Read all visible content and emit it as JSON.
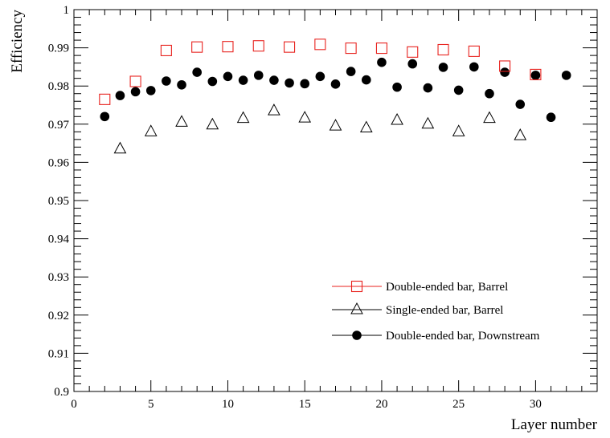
{
  "chart_data": {
    "type": "scatter",
    "title": "",
    "xlabel": "Layer number",
    "ylabel": "Efficiency",
    "xlim": [
      0,
      34
    ],
    "ylim": [
      0.9,
      1
    ],
    "x_ticks": [
      0,
      5,
      10,
      15,
      20,
      25,
      30
    ],
    "x_tick_labels": [
      "0",
      "5",
      "10",
      "15",
      "20",
      "25",
      "30"
    ],
    "y_ticks": [
      0.9,
      0.91,
      0.92,
      0.93,
      0.94,
      0.95,
      0.96,
      0.97,
      0.98,
      0.99,
      1
    ],
    "y_tick_labels": [
      "0.9",
      "0.91",
      "0.92",
      "0.93",
      "0.94",
      "0.95",
      "0.96",
      "0.97",
      "0.98",
      "0.99",
      "1"
    ],
    "grid": false,
    "legend_position": "bottom-right",
    "series": [
      {
        "name": "Double-ended bar, Barrel",
        "marker": "open-square",
        "color": "#e8221e",
        "x": [
          2,
          4,
          6,
          8,
          10,
          12,
          14,
          16,
          18,
          20,
          22,
          24,
          26,
          28,
          30
        ],
        "y": [
          0.9765,
          0.9812,
          0.9893,
          0.9902,
          0.9903,
          0.9905,
          0.9902,
          0.9909,
          0.9899,
          0.9899,
          0.9889,
          0.9895,
          0.9891,
          0.9852,
          0.983
        ]
      },
      {
        "name": "Single-ended bar, Barrel",
        "marker": "open-triangle",
        "color": "#000000",
        "x": [
          3,
          5,
          7,
          9,
          11,
          13,
          15,
          17,
          19,
          21,
          23,
          25,
          27,
          29
        ],
        "y": [
          0.9635,
          0.968,
          0.9705,
          0.9698,
          0.9715,
          0.9735,
          0.9716,
          0.9695,
          0.969,
          0.971,
          0.97,
          0.968,
          0.9715,
          0.967
        ]
      },
      {
        "name": "Double-ended bar, Downstream",
        "marker": "filled-circle",
        "color": "#000000",
        "x": [
          2,
          3,
          4,
          5,
          6,
          7,
          8,
          9,
          10,
          11,
          12,
          13,
          14,
          15,
          16,
          17,
          18,
          19,
          20,
          21,
          22,
          23,
          24,
          25,
          26,
          27,
          28,
          29,
          30,
          31,
          32
        ],
        "y": [
          0.972,
          0.9775,
          0.9785,
          0.9788,
          0.9813,
          0.9803,
          0.9836,
          0.9812,
          0.9825,
          0.9815,
          0.9828,
          0.9815,
          0.9808,
          0.9806,
          0.9825,
          0.9805,
          0.9838,
          0.9816,
          0.9862,
          0.9797,
          0.9858,
          0.9795,
          0.9849,
          0.9789,
          0.985,
          0.978,
          0.9836,
          0.9752,
          0.9828,
          0.9718,
          0.9828
        ]
      }
    ]
  }
}
